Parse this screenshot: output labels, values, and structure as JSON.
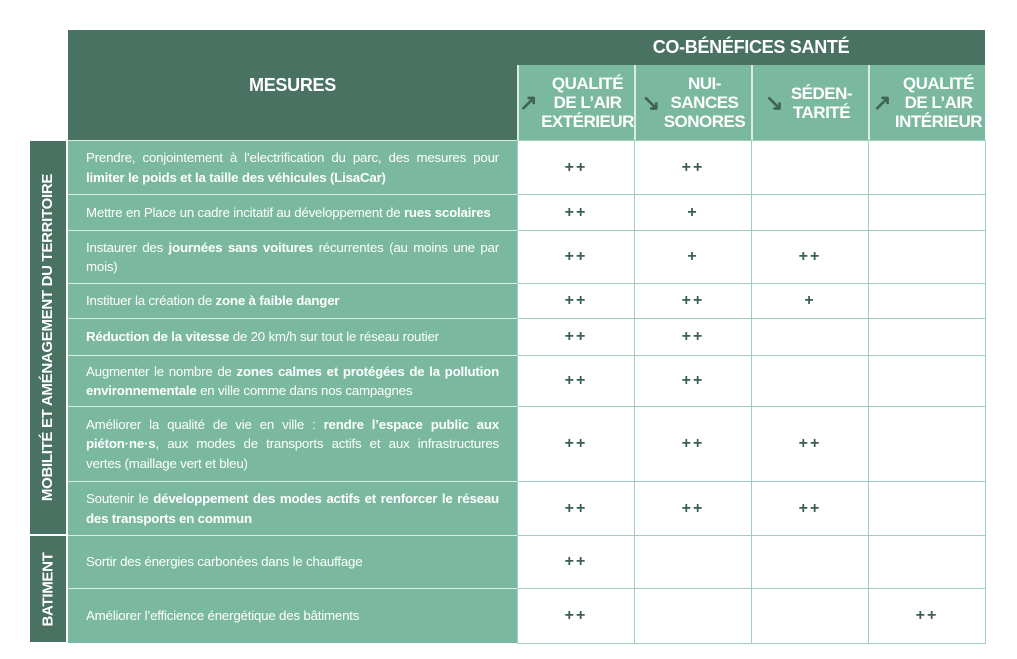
{
  "header": {
    "mesures": "MESURES",
    "cobenefices": "CO-BÉNÉFICES SANTÉ",
    "columns": [
      {
        "arrow": "↗",
        "label": "QUALITÉ DE L’AIR EXTÉRIEUR"
      },
      {
        "arrow": "↘",
        "label": "NUI-SANCES SONORES"
      },
      {
        "arrow": "↘",
        "label": "SÉDEN-TARITÉ"
      },
      {
        "arrow": "↗",
        "label": "QUALITÉ DE L’AIR INTÉRIEUR"
      }
    ]
  },
  "categories": [
    {
      "label": "MOBILITÉ ET AMÉNAGEMENT DU TERRITOIRE"
    },
    {
      "label": "BATIMENT"
    }
  ],
  "rows": [
    {
      "segments": [
        {
          "t": "Prendre, conjointement à l’electrification du parc, des mesures pour "
        },
        {
          "t": "limiter le poids et la taille des véhicules (LisaCar)",
          "b": true
        }
      ],
      "values": [
        "++",
        "++",
        "",
        ""
      ]
    },
    {
      "segments": [
        {
          "t": "Mettre en Place un cadre incitatif au développement de "
        },
        {
          "t": "rues scolaires",
          "b": true
        }
      ],
      "values": [
        "++",
        "+",
        "",
        ""
      ]
    },
    {
      "segments": [
        {
          "t": "Instaurer des "
        },
        {
          "t": "journées sans voitures",
          "b": true
        },
        {
          "t": " récurrentes (au moins une par mois)"
        }
      ],
      "values": [
        "++",
        "+",
        "++",
        ""
      ]
    },
    {
      "segments": [
        {
          "t": "Instituer la création de "
        },
        {
          "t": "zone à faible danger",
          "b": true
        }
      ],
      "values": [
        "++",
        "++",
        "+",
        ""
      ]
    },
    {
      "segments": [
        {
          "t": "Réduction de la vitesse",
          "b": true
        },
        {
          "t": " de 20 km/h sur tout le réseau routier"
        }
      ],
      "values": [
        "++",
        "++",
        "",
        ""
      ]
    },
    {
      "segments": [
        {
          "t": "Augmenter le nombre de "
        },
        {
          "t": "zones calmes et protégées de la pollution environnementale",
          "b": true
        },
        {
          "t": " en ville comme dans nos campagnes"
        }
      ],
      "values": [
        "++",
        "++",
        "",
        ""
      ]
    },
    {
      "segments": [
        {
          "t": "Améliorer la qualité de vie en ville : "
        },
        {
          "t": "rendre l’espace public aux piéton·ne·s",
          "b": true
        },
        {
          "t": ", aux modes de transports actifs et aux infrastructures vertes (maillage vert et bleu)"
        }
      ],
      "values": [
        "++",
        "++",
        "++",
        ""
      ]
    },
    {
      "segments": [
        {
          "t": "Soutenir le "
        },
        {
          "t": "développement des modes actifs et renforcer le réseau des transports en commun",
          "b": true
        }
      ],
      "values": [
        "++",
        "++",
        "++",
        ""
      ]
    },
    {
      "segments": [
        {
          "t": "Sortir des énergies carbonées dans le chauffage"
        }
      ],
      "values": [
        "++",
        "",
        "",
        ""
      ]
    },
    {
      "segments": [
        {
          "t": "Améliorer l’efficience énergétique des bâtiments"
        }
      ],
      "values": [
        "++",
        "",
        "",
        "++"
      ]
    }
  ],
  "colors": {
    "dark": "#4a7262",
    "mid": "#7ab8a0",
    "mark": "#3a6052"
  }
}
